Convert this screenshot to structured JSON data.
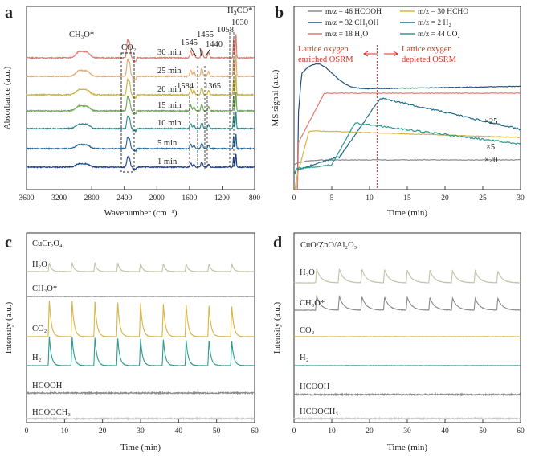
{
  "chart_data": [
    {
      "panel": "a",
      "type": "line",
      "xlabel": "Wavenumber (cm⁻¹)",
      "ylabel": "Absorbance (a.u.)",
      "xlim": [
        3600,
        800
      ],
      "xticks": [
        3600,
        3200,
        2800,
        2400,
        2000,
        1600,
        1200,
        800
      ],
      "series": [
        {
          "name": "1 min",
          "color": "#1a3f8c"
        },
        {
          "name": "5 min",
          "color": "#22679a"
        },
        {
          "name": "10 min",
          "color": "#2a8a8a"
        },
        {
          "name": "15 min",
          "color": "#6aa84f"
        },
        {
          "name": "20 min",
          "color": "#c9b13b"
        },
        {
          "name": "25 min",
          "color": "#e2a86c"
        },
        {
          "name": "30 min",
          "color": "#e07a6f"
        }
      ],
      "peaks": [
        {
          "x": 2950,
          "depth": 0.35,
          "width": 60
        },
        {
          "x": 2860,
          "depth": 0.3,
          "width": 55
        },
        {
          "x": 2360,
          "depth": 1.0,
          "width": 15
        },
        {
          "x": 2335,
          "depth": 0.8,
          "width": 15
        },
        {
          "x": 1584,
          "depth": 0.4,
          "width": 15
        },
        {
          "x": 1545,
          "depth": 0.3,
          "width": 15
        },
        {
          "x": 1455,
          "depth": 0.4,
          "width": 10
        },
        {
          "x": 1440,
          "depth": 0.35,
          "width": 10
        },
        {
          "x": 1365,
          "depth": 0.3,
          "width": 15
        },
        {
          "x": 1058,
          "depth": 1.1,
          "width": 8
        },
        {
          "x": 1030,
          "depth": 1.4,
          "width": 8
        }
      ],
      "annotations": {
        "ch3o": "CH₃O*",
        "co2": "CO₂",
        "h3co_prefix": "H",
        "h3co_sub": "3",
        "h3co_suffix": "CO*",
        "w1545": "1545",
        "w1455": "1455",
        "w1440": "1440",
        "w1058": "1058",
        "w1030": "1030",
        "w1584": "1584",
        "w1365": "1365"
      }
    },
    {
      "panel": "b",
      "type": "line",
      "xlabel": "Time (min)",
      "ylabel": "MS signal (a.u.)",
      "xlim": [
        0,
        30
      ],
      "xticks": [
        0,
        5,
        10,
        15,
        20,
        25,
        30
      ],
      "divider_x": 11,
      "region_left": [
        "Lattice oxygen",
        "enriched OSRM"
      ],
      "region_right": [
        "Lattice oxygen",
        "depleted OSRM"
      ],
      "series": [
        {
          "name": "m/z = 46 HCOOH",
          "color": "#8a8a8a"
        },
        {
          "name": "m/z = 32 CH₃OH",
          "color": "#234f7a"
        },
        {
          "name": "m/z = 18 H₂O",
          "color": "#e07a6f"
        },
        {
          "name": "m/z = 30 HCHO",
          "color": "#d9b440"
        },
        {
          "name": "m/z = 2   H₂",
          "color": "#1f6f8b"
        },
        {
          "name": "m/z = 44 CO₂",
          "color": "#2a9c8f"
        }
      ],
      "multipliers": [
        "×25",
        "×5",
        "×20"
      ]
    },
    {
      "panel": "c",
      "type": "line",
      "title": "CuCr₂O₄",
      "xlabel": "Time (min)",
      "ylabel": "Intensity (a.u.)",
      "xlim": [
        0,
        60
      ],
      "xticks": [
        0,
        10,
        20,
        30,
        40,
        50,
        60
      ],
      "pulse_times": [
        6,
        12,
        18,
        24,
        30,
        36,
        42,
        48,
        54
      ],
      "series": [
        {
          "name": "H₂O",
          "color": "#c2c2a8",
          "pulse": 0.25
        },
        {
          "name": "CH₃O*",
          "color": "#7f7f7f",
          "pulse": 0
        },
        {
          "name": "CO₂",
          "color": "#d9b440",
          "pulse": 1.0
        },
        {
          "name": "H₂",
          "color": "#2a9c8f",
          "pulse": 0.8
        },
        {
          "name": "HCOOH",
          "color": "#8a8a8a",
          "pulse": 0
        },
        {
          "name": "HCOOCH₃",
          "color": "#c8c8c8",
          "pulse": 0
        }
      ]
    },
    {
      "panel": "d",
      "type": "line",
      "title": "CuO/ZnO/Al₂O₃",
      "xlabel": "Time (min)",
      "ylabel": "Intensity (a.u.)",
      "xlim": [
        0,
        60
      ],
      "xticks": [
        0,
        10,
        20,
        30,
        40,
        50,
        60
      ],
      "pulse_times": [
        6,
        12,
        18,
        24,
        30,
        36,
        42,
        48,
        54
      ],
      "series": [
        {
          "name": "H₂O",
          "color": "#c2c2a8",
          "pulse": 0.8
        },
        {
          "name": "CH₃O*",
          "color": "#8a8a8a",
          "pulse": 0.8
        },
        {
          "name": "CO₂",
          "color": "#d9b440",
          "pulse": 0
        },
        {
          "name": "H₂",
          "color": "#2a9c8f",
          "pulse": 0
        },
        {
          "name": "HCOOH",
          "color": "#8a8a8a",
          "pulse": 0
        },
        {
          "name": "HCOOCH₃",
          "color": "#c8c8c8",
          "pulse": 0
        }
      ]
    }
  ],
  "panel_letters": [
    "a",
    "b",
    "c",
    "d"
  ]
}
